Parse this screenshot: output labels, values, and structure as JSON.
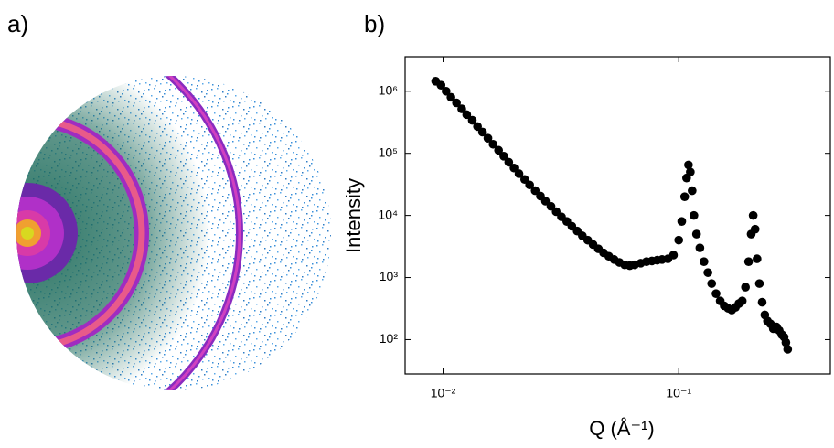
{
  "panel_labels": [
    "a)",
    "b)"
  ],
  "chart_data": {
    "type": "scatter",
    "x_label": "Q (Å⁻¹)",
    "y_label": "Intensity",
    "xscale": "log",
    "yscale": "log",
    "color": "#000000",
    "xlim": [
      0.0069,
      0.44
    ],
    "ylim": [
      28,
      3600000
    ],
    "xticks": [
      {
        "value": 0.01,
        "label": "10⁻²"
      },
      {
        "value": 0.1,
        "label": "10⁻¹"
      }
    ],
    "yticks": [
      {
        "value": 100,
        "label": "10²"
      },
      {
        "value": 1000,
        "label": "10³"
      },
      {
        "value": 10000,
        "label": "10⁴"
      },
      {
        "value": 100000,
        "label": "10⁵"
      },
      {
        "value": 1000000,
        "label": "10⁶"
      }
    ],
    "x": [
      0.0093,
      0.0098,
      0.0103,
      0.0108,
      0.0114,
      0.012,
      0.0126,
      0.0133,
      0.014,
      0.0147,
      0.0155,
      0.0163,
      0.0172,
      0.0181,
      0.019,
      0.02,
      0.021,
      0.0222,
      0.0233,
      0.0246,
      0.0259,
      0.0272,
      0.0287,
      0.0302,
      0.0318,
      0.0335,
      0.0352,
      0.0371,
      0.039,
      0.0411,
      0.0433,
      0.0456,
      0.048,
      0.0505,
      0.0532,
      0.056,
      0.059,
      0.062,
      0.065,
      0.069,
      0.073,
      0.077,
      0.081,
      0.085,
      0.09,
      0.095,
      0.1,
      0.103,
      0.106,
      0.108,
      0.11,
      0.112,
      0.114,
      0.116,
      0.119,
      0.123,
      0.128,
      0.133,
      0.138,
      0.144,
      0.15,
      0.156,
      0.162,
      0.168,
      0.174,
      0.18,
      0.186,
      0.192,
      0.198,
      0.203,
      0.207,
      0.211,
      0.215,
      0.22,
      0.226,
      0.232,
      0.238,
      0.245,
      0.252,
      0.26,
      0.267,
      0.274,
      0.28,
      0.285,
      0.29
    ],
    "values": [
      1450000,
      1250000,
      1000000,
      800000,
      650000,
      520000,
      420000,
      340000,
      270000,
      220000,
      175000,
      140000,
      112000,
      90000,
      72000,
      58000,
      47000,
      38000,
      31000,
      25000,
      20500,
      17000,
      14000,
      11500,
      9500,
      8000,
      6700,
      5600,
      4700,
      4000,
      3400,
      2900,
      2500,
      2200,
      1950,
      1750,
      1600,
      1550,
      1600,
      1700,
      1800,
      1850,
      1900,
      1950,
      2000,
      2300,
      4000,
      8000,
      20000,
      40000,
      65000,
      50000,
      25000,
      10000,
      5000,
      3000,
      1800,
      1200,
      800,
      550,
      420,
      350,
      320,
      300,
      330,
      380,
      420,
      700,
      1800,
      5000,
      10000,
      6000,
      2000,
      800,
      400,
      250,
      200,
      180,
      150,
      160,
      140,
      120,
      110,
      90,
      70
    ]
  }
}
